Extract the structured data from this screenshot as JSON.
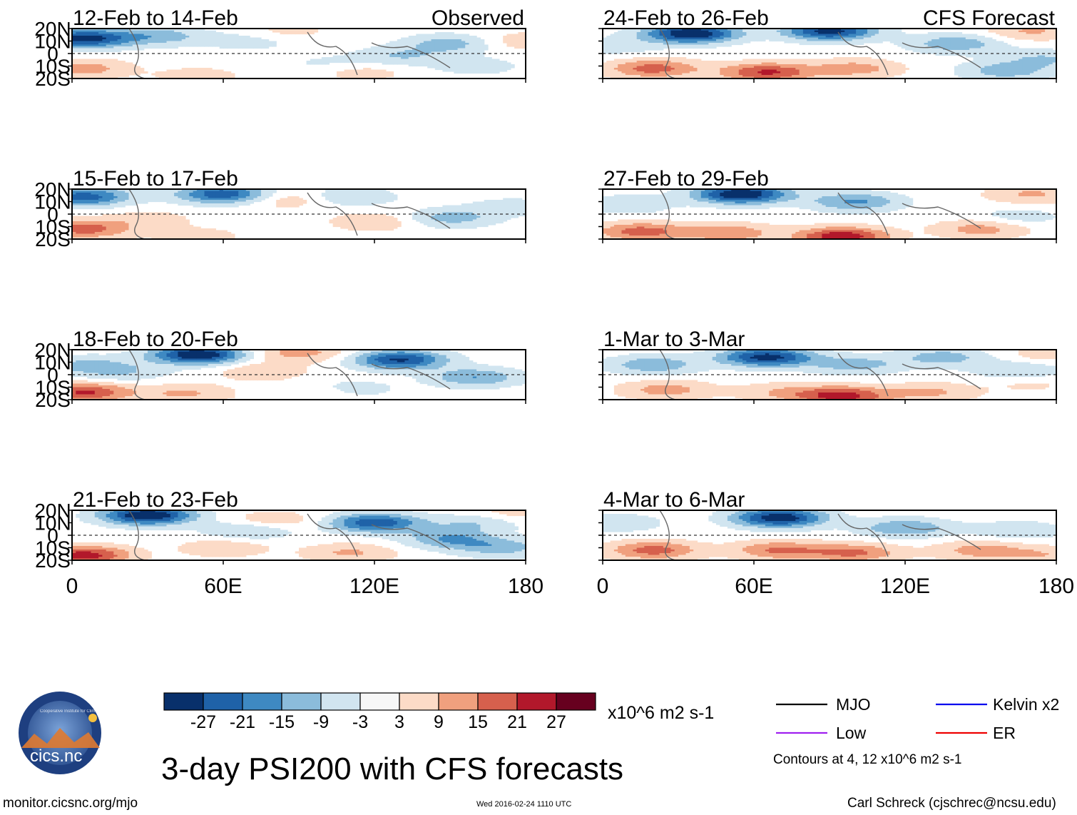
{
  "figure": {
    "title": "3-day PSI200 with CFS forecasts",
    "website": "monitor.cicsnc.org/mjo",
    "timestamp": "Wed 2016-02-24 1110 UTC",
    "author": "Carl Schreck (cjschrec@ncsu.edu)",
    "logo": {
      "text": "cics.nc",
      "ring_text": "Cooperative Institute for Climate and Satellites"
    }
  },
  "chart_data": {
    "type": "heatmap",
    "variable": "PSI200 anomaly",
    "units": "x10^6 m2 s-1",
    "x_axis": {
      "range": [
        0,
        180
      ],
      "ticks": [
        0,
        60,
        120,
        180
      ],
      "tick_labels": [
        "0",
        "60E",
        "120E",
        "180"
      ]
    },
    "y_axis": {
      "range": [
        -20,
        20
      ],
      "ticks": [
        20,
        10,
        0,
        -10,
        -20
      ],
      "tick_labels": [
        "20N",
        "10N",
        "0",
        "10S",
        "20S"
      ]
    },
    "columns": [
      {
        "header": "Observed",
        "panels": [
          {
            "label": "12-Feb to 14-Feb",
            "blobs": [
              [
                5,
                12,
                -30
              ],
              [
                35,
                14,
                -12
              ],
              [
                70,
                10,
                -6
              ],
              [
                130,
                -2,
                -9
              ],
              [
                150,
                8,
                -12
              ],
              [
                178,
                10,
                7
              ],
              [
                85,
                18,
                5
              ],
              [
                5,
                -12,
                12
              ],
              [
                50,
                -18,
                6
              ],
              [
                115,
                -15,
                6
              ],
              [
                100,
                -8,
                -4
              ],
              [
                160,
                -10,
                -6
              ]
            ]
          },
          {
            "label": "15-Feb to 17-Feb",
            "blobs": [
              [
                5,
                14,
                -24
              ],
              [
                60,
                16,
                -26
              ],
              [
                30,
                -4,
                6
              ],
              [
                85,
                12,
                8
              ],
              [
                120,
                -6,
                8
              ],
              [
                110,
                14,
                -9
              ],
              [
                150,
                -3,
                -12
              ],
              [
                5,
                -12,
                18
              ],
              [
                50,
                -18,
                6
              ],
              [
                175,
                6,
                -6
              ]
            ]
          },
          {
            "label": "18-Feb to 20-Feb",
            "blobs": [
              [
                50,
                16,
                -34
              ],
              [
                130,
                12,
                -28
              ],
              [
                5,
                8,
                -10
              ],
              [
                90,
                18,
                12
              ],
              [
                75,
                3,
                8
              ],
              [
                160,
                -2,
                -15
              ],
              [
                5,
                -14,
                22
              ],
              [
                45,
                -15,
                10
              ],
              [
                110,
                -12,
                -8
              ],
              [
                100,
                -15,
                6
              ],
              [
                20,
                2,
                -8
              ]
            ]
          },
          {
            "label": "21-Feb to 23-Feb",
            "blobs": [
              [
                30,
                16,
                -34
              ],
              [
                120,
                10,
                -26
              ],
              [
                70,
                4,
                -10
              ],
              [
                5,
                -16,
                24
              ],
              [
                60,
                -10,
                8
              ],
              [
                110,
                -14,
                10
              ],
              [
                170,
                -10,
                -12
              ],
              [
                150,
                -3,
                -15
              ],
              [
                80,
                12,
                8
              ],
              [
                175,
                18,
                6
              ],
              [
                160,
                10,
                -9
              ]
            ]
          }
        ]
      },
      {
        "header": "CFS Forecast",
        "panels": [
          {
            "label": "24-Feb to 26-Feb",
            "blobs": [
              [
                35,
                16,
                -34
              ],
              [
                90,
                18,
                -30
              ],
              [
                140,
                8,
                -14
              ],
              [
                20,
                -12,
                18
              ],
              [
                65,
                -15,
                22
              ],
              [
                100,
                -12,
                12
              ],
              [
                160,
                -14,
                -12
              ],
              [
                175,
                -4,
                -9
              ],
              [
                170,
                18,
                10
              ],
              [
                5,
                6,
                -6
              ]
            ]
          },
          {
            "label": "27-Feb to 29-Feb",
            "blobs": [
              [
                55,
                16,
                -34
              ],
              [
                100,
                10,
                -16
              ],
              [
                15,
                -14,
                18
              ],
              [
                50,
                -15,
                14
              ],
              [
                95,
                -18,
                26
              ],
              [
                150,
                -12,
                12
              ],
              [
                170,
                16,
                10
              ],
              [
                10,
                8,
                -8
              ],
              [
                165,
                -2,
                -6
              ]
            ]
          },
          {
            "label": "1-Mar to 3-Mar",
            "blobs": [
              [
                65,
                14,
                -30
              ],
              [
                20,
                8,
                -14
              ],
              [
                100,
                8,
                -12
              ],
              [
                135,
                14,
                -12
              ],
              [
                25,
                -12,
                12
              ],
              [
                70,
                -14,
                8
              ],
              [
                95,
                -17,
                24
              ],
              [
                130,
                -14,
                10
              ],
              [
                170,
                -8,
                4
              ],
              [
                175,
                16,
                6
              ],
              [
                165,
                4,
                -9
              ]
            ]
          },
          {
            "label": "4-Mar to 6-Mar",
            "blobs": [
              [
                70,
                14,
                -32
              ],
              [
                120,
                6,
                -15
              ],
              [
                20,
                -12,
                18
              ],
              [
                70,
                -12,
                16
              ],
              [
                100,
                -14,
                16
              ],
              [
                150,
                -12,
                12
              ],
              [
                175,
                -16,
                8
              ],
              [
                165,
                4,
                -8
              ],
              [
                5,
                10,
                -8
              ]
            ]
          }
        ]
      }
    ],
    "colorbar": {
      "levels": [
        -27,
        -21,
        -15,
        -9,
        -3,
        3,
        9,
        15,
        21,
        27
      ],
      "labels": [
        "-27",
        "-21",
        "-15",
        "-9",
        "-3",
        "3",
        "9",
        "15",
        "21",
        "27"
      ],
      "colors": [
        "#08306b",
        "#1f62a8",
        "#3e89c2",
        "#8bbcdb",
        "#d1e5f0",
        "#f7f7f7",
        "#fcdbc7",
        "#f0a07e",
        "#d6604d",
        "#b2182b",
        "#67001f"
      ],
      "units_label": "x10^6 m2 s-1"
    },
    "legend": {
      "items": [
        {
          "label": "MJO",
          "color": "#000000"
        },
        {
          "label": "Kelvin x2",
          "color": "#0000ee"
        },
        {
          "label": "Low",
          "color": "#a020f0"
        },
        {
          "label": "ER",
          "color": "#ee0000"
        }
      ],
      "note": "Contours at 4, 12 x10^6 m2 s-1"
    }
  }
}
